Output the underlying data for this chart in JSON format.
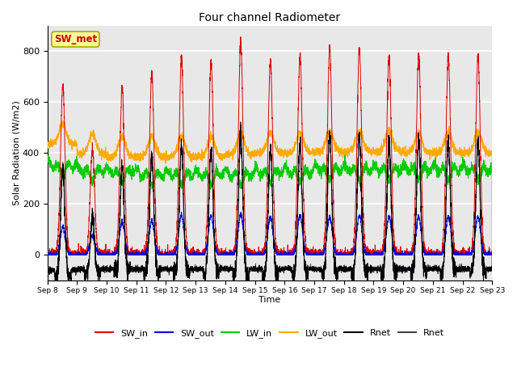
{
  "title": "Four channel Radiometer",
  "xlabel": "Time",
  "ylabel": "Solar Radiation (W/m2)",
  "ylim": [
    -100,
    900
  ],
  "line_colors": {
    "SW_in": "#dd0000",
    "SW_out": "#0000dd",
    "LW_in": "#00cc00",
    "LW_out": "#ffaa00",
    "Rnet": "#000000",
    "Rnet2": "#444444"
  },
  "annotation_text": "SW_met",
  "annotation_color": "#cc0000",
  "annotation_bg": "#ffff99",
  "annotation_edge": "#aaaa00",
  "background_color": "#e8e8e8",
  "grid_color": "#ffffff",
  "legend_labels": [
    "SW_in",
    "SW_out",
    "LW_in",
    "LW_out",
    "Rnet",
    "Rnet"
  ],
  "legend_colors": [
    "#dd0000",
    "#0000dd",
    "#00cc00",
    "#ffaa00",
    "#000000",
    "#444444"
  ],
  "tick_label_dates": [
    "Sep 8",
    "Sep 9",
    "Sep 10",
    "Sep 11",
    "Sep 12",
    "Sep 13",
    "Sep 14",
    "Sep 15",
    "Sep 16",
    "Sep 17",
    "Sep 18",
    "Sep 19",
    "Sep 20",
    "Sep 21",
    "Sep 22",
    "Sep 23"
  ],
  "sw_peaks": [
    670,
    415,
    650,
    715,
    770,
    760,
    830,
    760,
    780,
    810,
    810,
    780,
    780,
    780,
    780
  ],
  "sw_out_peaks": [
    110,
    75,
    130,
    135,
    155,
    155,
    160,
    150,
    155,
    150,
    155,
    150,
    150,
    150,
    150
  ],
  "lw_in_base": [
    355,
    335,
    330,
    320,
    320,
    320,
    320,
    330,
    330,
    340,
    340,
    340,
    340,
    340,
    340
  ],
  "lw_out_base": [
    435,
    395,
    385,
    385,
    385,
    385,
    395,
    400,
    400,
    405,
    405,
    405,
    400,
    400,
    400
  ],
  "rnet_night": [
    -60,
    -55,
    -55,
    -55,
    -55,
    -55,
    -55,
    -55,
    -55,
    -55,
    -55,
    -55,
    -55,
    -55,
    -55
  ]
}
